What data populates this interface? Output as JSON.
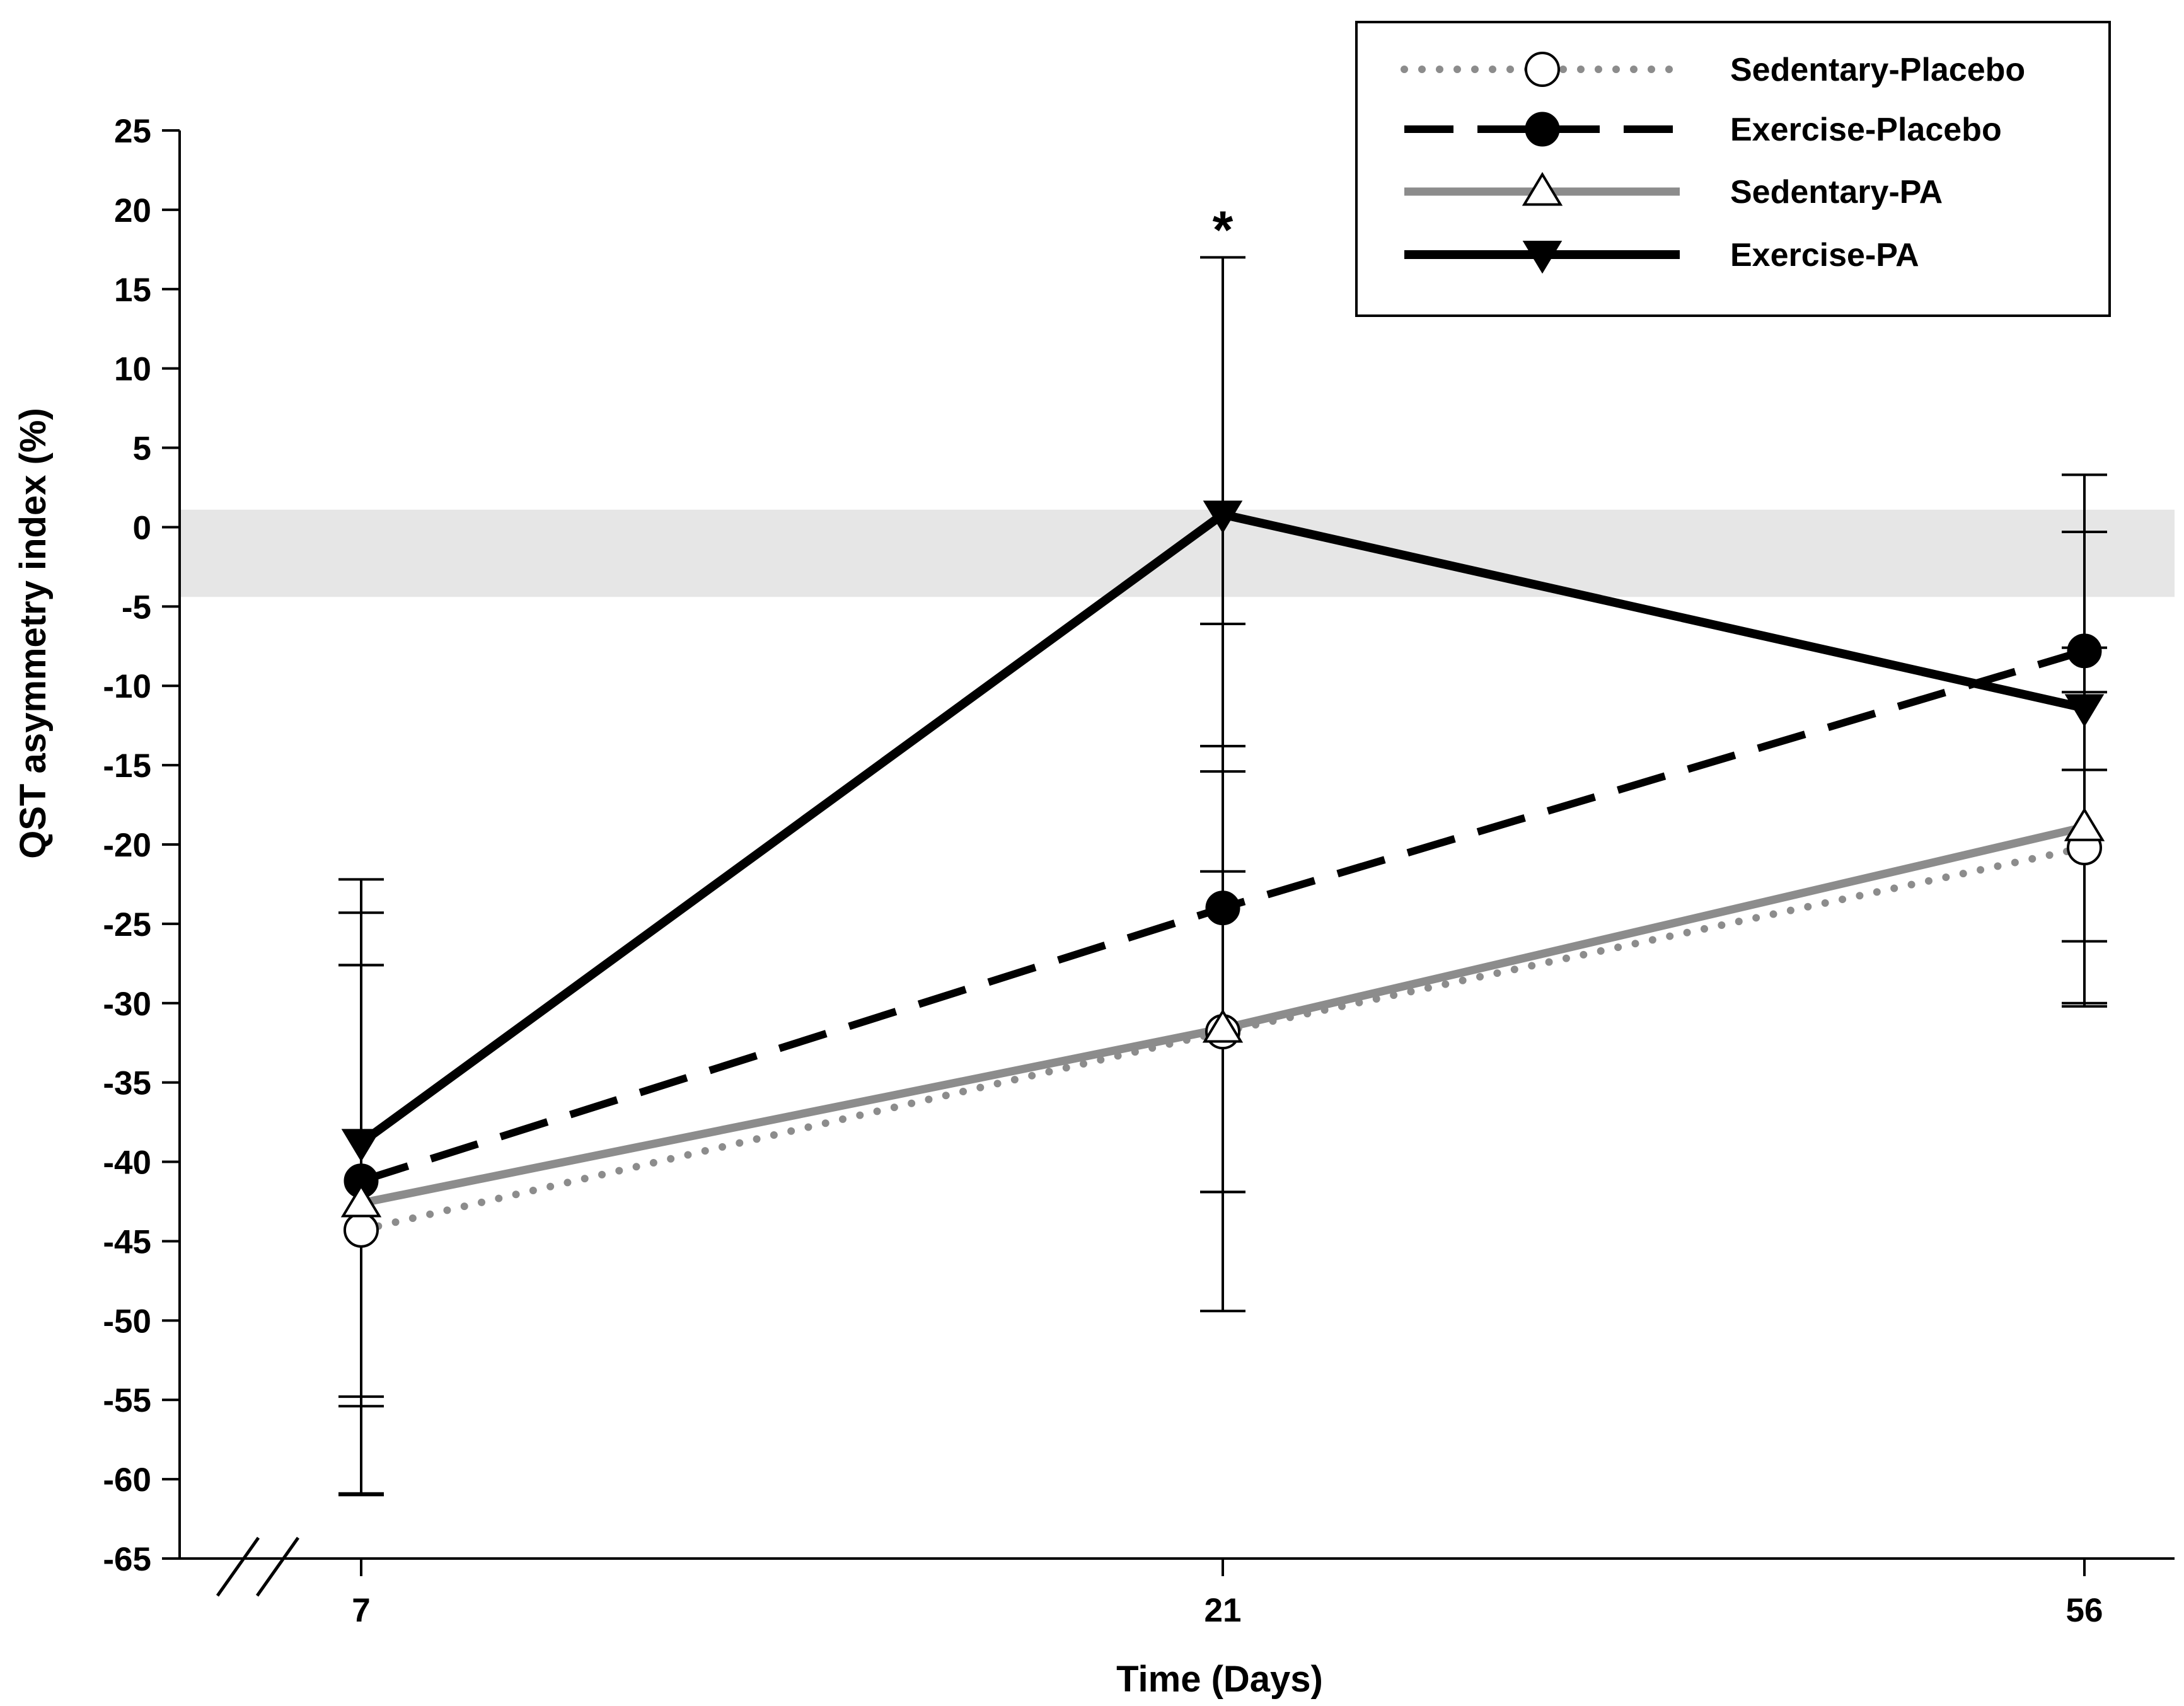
{
  "chart_data": {
    "type": "line",
    "xlabel": "Time (Days)",
    "ylabel": "QST asymmetry index (%)",
    "x": [
      7,
      21,
      56
    ],
    "x_tick_labels": [
      "7",
      "21",
      "56"
    ],
    "ylim": [
      -65,
      25
    ],
    "y_ticks": [
      25,
      20,
      15,
      10,
      5,
      0,
      -5,
      -10,
      -15,
      -20,
      -25,
      -30,
      -35,
      -40,
      -45,
      -50,
      -55,
      -60,
      -65
    ],
    "y_tick_labels": [
      "25",
      "20",
      "15",
      "10",
      "5",
      "0",
      "-5",
      "-10",
      "-15",
      "-20",
      "-25",
      "-30",
      "-35",
      "-40",
      "-45",
      "-50",
      "-55",
      "-60",
      "-65"
    ],
    "shaded_band": [
      -4.4,
      1.1
    ],
    "shaded_band_color": "#e6e6e6",
    "legend_position": "top-right",
    "x_axis_break": true,
    "series": [
      {
        "name": "Sedentary-Placebo",
        "values": [
          -44.3,
          -31.8,
          -20.2
        ],
        "errors": [
          16.7,
          10.1,
          9.8
        ],
        "line_style": "dotted",
        "line_color": "#8c8c8c",
        "marker": "open-circle"
      },
      {
        "name": "Exercise-Placebo",
        "values": [
          -41.2,
          -24.0,
          -7.8
        ],
        "errors": [
          13.6,
          17.9,
          7.5
        ],
        "line_style": "dashed",
        "line_color": "#000000",
        "marker": "filled-circle"
      },
      {
        "name": "Sedentary-PA",
        "values": [
          -42.6,
          -31.6,
          -18.9
        ],
        "errors": [
          18.3,
          17.8,
          11.3
        ],
        "line_style": "solid",
        "line_color": "#8c8c8c",
        "marker": "open-triangle-up"
      },
      {
        "name": "Exercise-PA",
        "values": [
          -38.8,
          0.8,
          -11.4
        ],
        "errors": [
          16.6,
          16.2,
          14.7
        ],
        "line_style": "solid",
        "line_color": "#000000",
        "marker": "filled-triangle-down"
      }
    ],
    "annotations": [
      {
        "text": "*",
        "x": 21,
        "y": 17.0
      }
    ]
  }
}
